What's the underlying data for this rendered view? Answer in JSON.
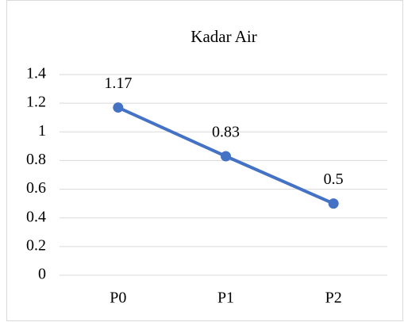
{
  "chart_data": {
    "type": "line",
    "title": "Kadar Air",
    "categories": [
      "P0",
      "P1",
      "P2"
    ],
    "series": [
      {
        "name": "Kadar Air",
        "color": "#4472c4",
        "values": [
          1.17,
          0.83,
          0.5
        ]
      }
    ],
    "ylim": [
      0,
      1.4
    ],
    "yticks": [
      0,
      0.2,
      0.4,
      0.6,
      0.8,
      1,
      1.2,
      1.4
    ],
    "grid": true
  }
}
